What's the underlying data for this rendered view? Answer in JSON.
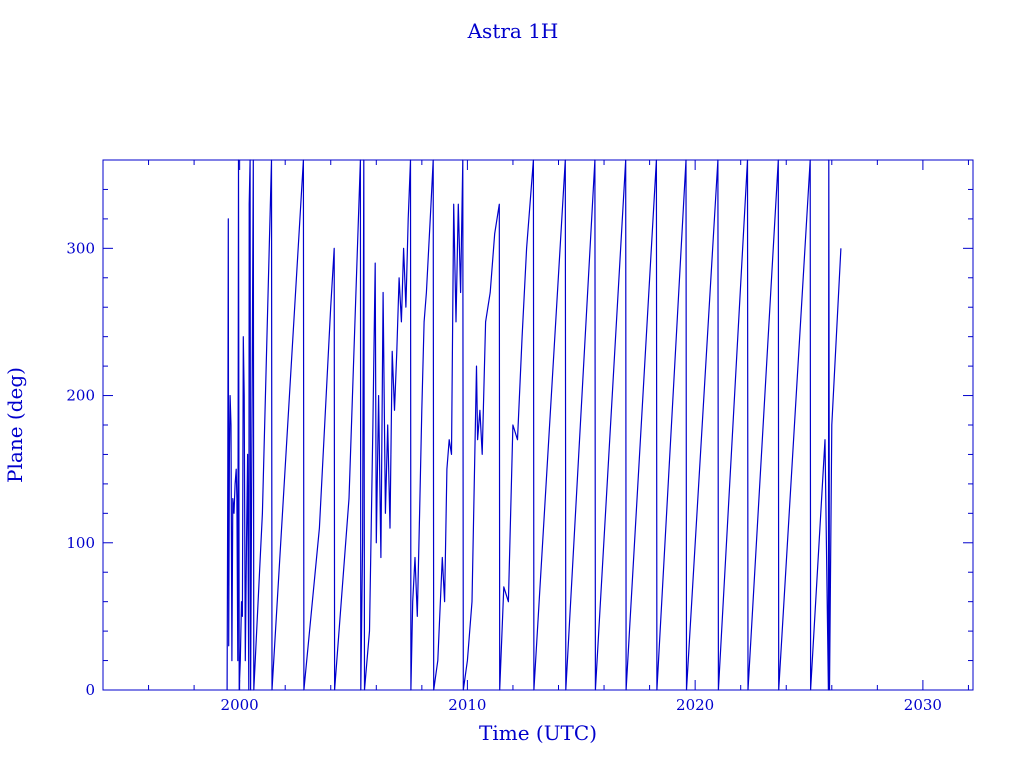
{
  "chart_data": {
    "type": "line",
    "title": "Astra 1H",
    "xlabel": "Time (UTC)",
    "ylabel": "Plane (deg)",
    "xlim": [
      1994,
      2032.2
    ],
    "ylim": [
      0,
      360
    ],
    "xticks": [
      2000,
      2010,
      2020,
      2030
    ],
    "yticks": [
      0,
      100,
      200,
      300
    ],
    "grid": false,
    "series_color": "#0000cc",
    "series": [
      {
        "values": [
          [
            1999.45,
            0
          ],
          [
            1999.48,
            150
          ],
          [
            1999.5,
            320
          ],
          [
            1999.52,
            30
          ],
          [
            1999.55,
            160
          ],
          [
            1999.58,
            200
          ],
          [
            1999.62,
            180
          ],
          [
            1999.66,
            20
          ],
          [
            1999.7,
            130
          ],
          [
            1999.75,
            120
          ],
          [
            1999.8,
            140
          ],
          [
            1999.85,
            150
          ],
          [
            1999.88,
            130
          ],
          [
            1999.92,
            20
          ],
          [
            1999.95,
            360
          ],
          [
            1999.98,
            0
          ],
          [
            2000.03,
            20
          ],
          [
            2000.08,
            60
          ],
          [
            2000.12,
            50
          ],
          [
            2000.16,
            240
          ],
          [
            2000.2,
            200
          ],
          [
            2000.25,
            20
          ],
          [
            2000.3,
            100
          ],
          [
            2000.35,
            160
          ],
          [
            2000.4,
            0
          ],
          [
            2000.42,
            330
          ],
          [
            2000.46,
            360
          ],
          [
            2000.48,
            0
          ],
          [
            2000.6,
            360
          ],
          [
            2000.62,
            0
          ],
          [
            2001.0,
            120
          ],
          [
            2001.4,
            360
          ],
          [
            2001.42,
            0
          ],
          [
            2002.8,
            360
          ],
          [
            2002.82,
            0
          ],
          [
            2003.5,
            110
          ],
          [
            2004.0,
            260
          ],
          [
            2004.15,
            300
          ],
          [
            2004.17,
            0
          ],
          [
            2004.8,
            130
          ],
          [
            2005.3,
            360
          ],
          [
            2005.32,
            0
          ],
          [
            2005.4,
            100
          ],
          [
            2005.45,
            360
          ],
          [
            2005.48,
            0
          ],
          [
            2005.7,
            40
          ],
          [
            2005.85,
            180
          ],
          [
            2005.95,
            290
          ],
          [
            2006.0,
            100
          ],
          [
            2006.1,
            200
          ],
          [
            2006.2,
            90
          ],
          [
            2006.3,
            270
          ],
          [
            2006.4,
            120
          ],
          [
            2006.5,
            180
          ],
          [
            2006.6,
            110
          ],
          [
            2006.7,
            230
          ],
          [
            2006.8,
            190
          ],
          [
            2006.9,
            230
          ],
          [
            2007.0,
            280
          ],
          [
            2007.1,
            250
          ],
          [
            2007.2,
            300
          ],
          [
            2007.3,
            260
          ],
          [
            2007.4,
            320
          ],
          [
            2007.5,
            360
          ],
          [
            2007.52,
            0
          ],
          [
            2007.6,
            60
          ],
          [
            2007.7,
            90
          ],
          [
            2007.8,
            50
          ],
          [
            2007.9,
            120
          ],
          [
            2008.0,
            190
          ],
          [
            2008.1,
            250
          ],
          [
            2008.2,
            270
          ],
          [
            2008.3,
            300
          ],
          [
            2008.4,
            330
          ],
          [
            2008.5,
            360
          ],
          [
            2008.52,
            0
          ],
          [
            2008.7,
            20
          ],
          [
            2008.9,
            90
          ],
          [
            2009.0,
            60
          ],
          [
            2009.1,
            150
          ],
          [
            2009.2,
            170
          ],
          [
            2009.3,
            160
          ],
          [
            2009.4,
            330
          ],
          [
            2009.5,
            250
          ],
          [
            2009.6,
            330
          ],
          [
            2009.7,
            270
          ],
          [
            2009.8,
            360
          ],
          [
            2009.82,
            0
          ],
          [
            2010.0,
            20
          ],
          [
            2010.2,
            60
          ],
          [
            2010.4,
            220
          ],
          [
            2010.45,
            170
          ],
          [
            2010.55,
            190
          ],
          [
            2010.65,
            160
          ],
          [
            2010.8,
            250
          ],
          [
            2011.0,
            270
          ],
          [
            2011.2,
            310
          ],
          [
            2011.4,
            330
          ],
          [
            2011.42,
            0
          ],
          [
            2011.6,
            70
          ],
          [
            2011.8,
            60
          ],
          [
            2012.0,
            180
          ],
          [
            2012.2,
            170
          ],
          [
            2012.4,
            240
          ],
          [
            2012.6,
            300
          ],
          [
            2012.9,
            360
          ],
          [
            2012.92,
            0
          ],
          [
            2014.3,
            360
          ],
          [
            2014.32,
            0
          ],
          [
            2015.6,
            360
          ],
          [
            2015.62,
            0
          ],
          [
            2016.95,
            360
          ],
          [
            2016.97,
            0
          ],
          [
            2018.3,
            360
          ],
          [
            2018.32,
            0
          ],
          [
            2019.6,
            360
          ],
          [
            2019.62,
            0
          ],
          [
            2021.0,
            360
          ],
          [
            2021.02,
            0
          ],
          [
            2022.3,
            360
          ],
          [
            2022.32,
            0
          ],
          [
            2023.65,
            360
          ],
          [
            2023.67,
            0
          ],
          [
            2025.05,
            360
          ],
          [
            2025.07,
            0
          ],
          [
            2025.7,
            170
          ],
          [
            2025.85,
            0
          ],
          [
            2025.87,
            360
          ],
          [
            2025.9,
            0
          ],
          [
            2026.0,
            180
          ],
          [
            2026.4,
            300
          ]
        ]
      }
    ]
  }
}
